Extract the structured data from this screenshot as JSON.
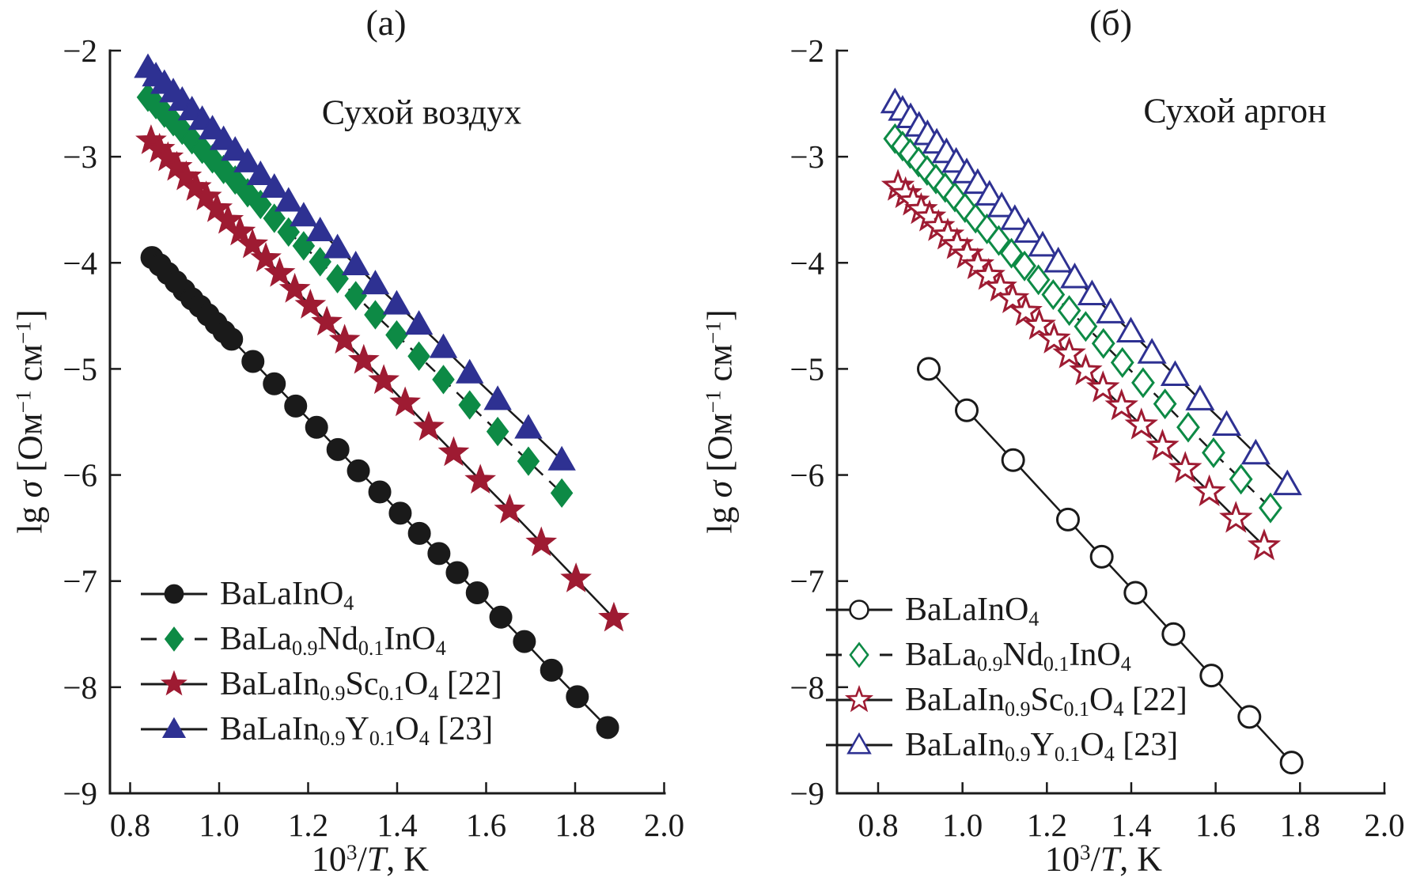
{
  "chart_data": [
    {
      "id": "a",
      "type": "line",
      "title": "(a)",
      "annotation": "Сухой воздух",
      "xlabel_rich": "10^{3}/~T~, K",
      "ylabel_rich": "lg ~σ~ [Ом^{−1} см^{−1}]",
      "x_ticks": [
        0.8,
        1.0,
        1.2,
        1.4,
        1.6,
        1.8,
        2.0
      ],
      "y_ticks": [
        -2,
        -3,
        -4,
        -5,
        -6,
        -7,
        -8,
        -9
      ],
      "xlim": [
        0.75,
        2.0
      ],
      "ylim": [
        -9,
        -2
      ],
      "grid": false,
      "legend_position": "lower-left",
      "series": [
        {
          "name": "BaLaInO4",
          "label_rich": "BaLaInO_{4}",
          "marker": "circle",
          "marker_fill": "solid",
          "color": "#1a1a1a",
          "line": "solid",
          "x": [
            0.849,
            0.867,
            0.885,
            0.903,
            0.921,
            0.939,
            0.957,
            0.975,
            0.993,
            1.011,
            1.028,
            1.076,
            1.124,
            1.172,
            1.219,
            1.267,
            1.313,
            1.361,
            1.407,
            1.45,
            1.494,
            1.535,
            1.58,
            1.633,
            1.686,
            1.747,
            1.805,
            1.873
          ],
          "y": [
            -3.95,
            -4.02,
            -4.1,
            -4.18,
            -4.26,
            -4.34,
            -4.41,
            -4.49,
            -4.57,
            -4.65,
            -4.72,
            -4.93,
            -5.14,
            -5.35,
            -5.55,
            -5.76,
            -5.96,
            -6.16,
            -6.36,
            -6.55,
            -6.74,
            -6.92,
            -7.11,
            -7.34,
            -7.57,
            -7.84,
            -8.09,
            -8.38
          ]
        },
        {
          "name": "BaLa0.9Nd0.1InO4",
          "label_rich": "BaLa_{0.9}Nd_{0.1}InO_{4}",
          "marker": "diamond",
          "marker_fill": "solid",
          "color": "#0d8a45",
          "line": "dashed",
          "x": [
            0.84,
            0.858,
            0.877,
            0.897,
            0.917,
            0.939,
            0.962,
            0.985,
            1.01,
            1.036,
            1.064,
            1.093,
            1.124,
            1.156,
            1.19,
            1.227,
            1.266,
            1.307,
            1.351,
            1.399,
            1.449,
            1.504,
            1.563,
            1.626,
            1.695,
            1.77
          ],
          "y": [
            -2.44,
            -2.51,
            -2.59,
            -2.67,
            -2.75,
            -2.84,
            -2.93,
            -3.02,
            -3.12,
            -3.22,
            -3.34,
            -3.45,
            -3.58,
            -3.71,
            -3.84,
            -3.99,
            -4.15,
            -4.31,
            -4.49,
            -4.68,
            -4.88,
            -5.1,
            -5.34,
            -5.59,
            -5.87,
            -6.17
          ]
        },
        {
          "name": "BaLaIn0.9Sc0.1O4 [22]",
          "label_rich": "BaLaIn_{0.9}Sc_{0.1}O_{4} [22]",
          "marker": "star",
          "marker_fill": "solid",
          "color": "#9e1b32",
          "line": "solid",
          "x": [
            0.847,
            0.866,
            0.885,
            0.905,
            0.926,
            0.948,
            0.971,
            0.995,
            1.02,
            1.047,
            1.075,
            1.105,
            1.136,
            1.17,
            1.205,
            1.242,
            1.282,
            1.325,
            1.37,
            1.418,
            1.471,
            1.527,
            1.587,
            1.653,
            1.724,
            1.802,
            1.887
          ],
          "y": [
            -2.85,
            -2.93,
            -3.01,
            -3.1,
            -3.19,
            -3.29,
            -3.38,
            -3.49,
            -3.6,
            -3.71,
            -3.83,
            -3.96,
            -4.1,
            -4.25,
            -4.4,
            -4.56,
            -4.73,
            -4.92,
            -5.11,
            -5.32,
            -5.55,
            -5.79,
            -6.05,
            -6.33,
            -6.64,
            -6.98,
            -7.35
          ]
        },
        {
          "name": "BaLaIn0.9Y0.1O4 [23]",
          "label_rich": "BaLaIn_{0.9}Y_{0.1}O_{4} [23]",
          "marker": "triangle",
          "marker_fill": "solid",
          "color": "#2e3192",
          "line": "solid",
          "x": [
            0.84,
            0.858,
            0.877,
            0.897,
            0.917,
            0.939,
            0.962,
            0.985,
            1.01,
            1.036,
            1.064,
            1.093,
            1.124,
            1.156,
            1.19,
            1.227,
            1.266,
            1.307,
            1.351,
            1.399,
            1.449,
            1.504,
            1.563,
            1.626,
            1.695,
            1.77
          ],
          "y": [
            -2.16,
            -2.24,
            -2.31,
            -2.39,
            -2.47,
            -2.56,
            -2.65,
            -2.74,
            -2.84,
            -2.94,
            -3.05,
            -3.17,
            -3.29,
            -3.42,
            -3.56,
            -3.7,
            -3.86,
            -4.02,
            -4.2,
            -4.39,
            -4.58,
            -4.8,
            -5.04,
            -5.29,
            -5.56,
            -5.86
          ]
        }
      ]
    },
    {
      "id": "b",
      "type": "line",
      "title": "(б)",
      "annotation": "Сухой аргон",
      "xlabel_rich": "10^{3}/~T~, K",
      "ylabel_rich": "lg ~σ~ [Ом^{−1} см^{−1}]",
      "x_ticks": [
        0.8,
        1.0,
        1.2,
        1.4,
        1.6,
        1.8,
        2.0
      ],
      "y_ticks": [
        -2,
        -3,
        -4,
        -5,
        -6,
        -7,
        -8,
        -9
      ],
      "xlim": [
        0.7,
        2.0
      ],
      "ylim": [
        -9,
        -2
      ],
      "grid": false,
      "legend_position": "lower-left",
      "series": [
        {
          "name": "BaLaInO4",
          "label_rich": "BaLaInO_{4}",
          "marker": "circle",
          "marker_fill": "open",
          "color": "#1a1a1a",
          "line": "solid",
          "x": [
            0.92,
            1.01,
            1.12,
            1.25,
            1.33,
            1.41,
            1.5,
            1.59,
            1.68,
            1.78
          ],
          "y": [
            -5.0,
            -5.39,
            -5.86,
            -6.42,
            -6.77,
            -7.11,
            -7.5,
            -7.89,
            -8.28,
            -8.71
          ]
        },
        {
          "name": "BaLa0.9Nd0.1InO4",
          "label_rich": "BaLa_{0.9}Nd_{0.1}InO_{4}",
          "marker": "diamond",
          "marker_fill": "open",
          "color": "#0d8a45",
          "line": "dashed",
          "x": [
            0.84,
            0.858,
            0.876,
            0.896,
            0.916,
            0.937,
            0.959,
            0.982,
            1.006,
            1.031,
            1.058,
            1.086,
            1.116,
            1.147,
            1.18,
            1.215,
            1.253,
            1.292,
            1.334,
            1.379,
            1.428,
            1.48,
            1.535,
            1.595,
            1.66,
            1.73
          ],
          "y": [
            -2.83,
            -2.9,
            -2.97,
            -3.05,
            -3.13,
            -3.21,
            -3.29,
            -3.38,
            -3.48,
            -3.58,
            -3.68,
            -3.79,
            -3.91,
            -4.03,
            -4.16,
            -4.3,
            -4.45,
            -4.6,
            -4.76,
            -4.94,
            -5.13,
            -5.33,
            -5.55,
            -5.79,
            -6.04,
            -6.31
          ]
        },
        {
          "name": "BaLaIn0.9Sc0.1O4 [22]",
          "label_rich": "BaLaIn_{0.9}Sc_{0.1}O_{4} [22]",
          "marker": "star",
          "marker_fill": "open",
          "color": "#9e1b32",
          "line": "solid",
          "x": [
            0.847,
            0.865,
            0.883,
            0.902,
            0.922,
            0.943,
            0.965,
            0.987,
            1.011,
            1.036,
            1.062,
            1.09,
            1.119,
            1.15,
            1.182,
            1.217,
            1.253,
            1.292,
            1.333,
            1.377,
            1.424,
            1.474,
            1.528,
            1.585,
            1.648,
            1.715
          ],
          "y": [
            -3.28,
            -3.35,
            -3.42,
            -3.5,
            -3.57,
            -3.66,
            -3.74,
            -3.83,
            -3.92,
            -4.02,
            -4.12,
            -4.23,
            -4.34,
            -4.46,
            -4.59,
            -4.72,
            -4.86,
            -5.02,
            -5.18,
            -5.35,
            -5.53,
            -5.73,
            -5.94,
            -6.16,
            -6.41,
            -6.67
          ]
        },
        {
          "name": "BaLaIn0.9Y0.1O4 [23]",
          "label_rich": "BaLaIn_{0.9}Y_{0.1}O_{4} [23]",
          "marker": "triangle",
          "marker_fill": "open",
          "color": "#2e3192",
          "line": "solid",
          "x": [
            0.84,
            0.858,
            0.877,
            0.897,
            0.917,
            0.939,
            0.962,
            0.985,
            1.01,
            1.036,
            1.064,
            1.093,
            1.124,
            1.156,
            1.19,
            1.227,
            1.266,
            1.307,
            1.351,
            1.399,
            1.449,
            1.504,
            1.563,
            1.626,
            1.695,
            1.77
          ],
          "y": [
            -2.49,
            -2.56,
            -2.63,
            -2.71,
            -2.79,
            -2.87,
            -2.96,
            -3.05,
            -3.15,
            -3.25,
            -3.36,
            -3.47,
            -3.59,
            -3.71,
            -3.84,
            -3.99,
            -4.14,
            -4.3,
            -4.47,
            -4.65,
            -4.85,
            -5.06,
            -5.29,
            -5.53,
            -5.8,
            -6.09
          ]
        }
      ]
    }
  ]
}
